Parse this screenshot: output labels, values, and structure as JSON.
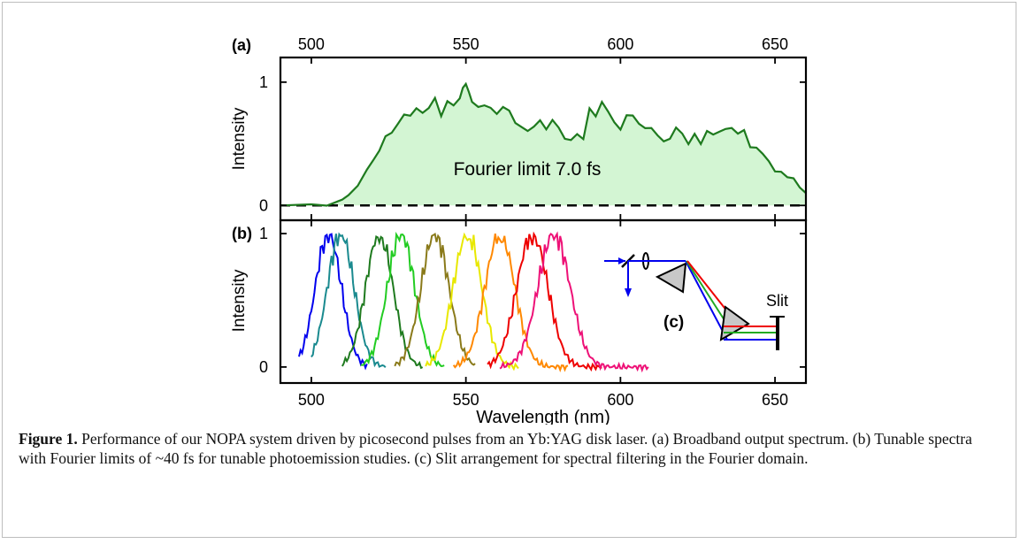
{
  "chart_data": [
    {
      "panel": "(a)",
      "type": "area",
      "xlabel": "",
      "ylabel": "Intensity",
      "xlim": [
        490,
        660
      ],
      "ylim": [
        -0.12,
        1.2
      ],
      "top_ticks": [
        500,
        550,
        600,
        650
      ],
      "y_ticks": [
        0,
        1
      ],
      "annotation": "Fourier limit 7.0 fs",
      "series": [
        {
          "color": "#1e7a1e",
          "fill": "#d3f5d3",
          "x": [
            490,
            500,
            505,
            510,
            512,
            515,
            518,
            520,
            522,
            524,
            526,
            528,
            530,
            532,
            534,
            536,
            538,
            540,
            542,
            544,
            546,
            548,
            549,
            550,
            551,
            552,
            554,
            556,
            558,
            560,
            562,
            564,
            566,
            568,
            570,
            572,
            574,
            576,
            578,
            580,
            582,
            584,
            586,
            588,
            590,
            592,
            594,
            596,
            598,
            600,
            602,
            604,
            606,
            608,
            610,
            612,
            614,
            616,
            618,
            620,
            622,
            624,
            626,
            628,
            630,
            632,
            634,
            636,
            638,
            640,
            642,
            644,
            646,
            648,
            650,
            652,
            654,
            656,
            658,
            660
          ],
          "y": [
            0,
            0,
            0.01,
            0.04,
            0.08,
            0.17,
            0.28,
            0.37,
            0.45,
            0.55,
            0.6,
            0.66,
            0.73,
            0.74,
            0.78,
            0.75,
            0.8,
            0.86,
            0.73,
            0.85,
            0.8,
            0.88,
            0.95,
            0.98,
            0.93,
            0.83,
            0.8,
            0.82,
            0.78,
            0.75,
            0.8,
            0.76,
            0.68,
            0.63,
            0.6,
            0.65,
            0.68,
            0.62,
            0.7,
            0.62,
            0.55,
            0.53,
            0.57,
            0.55,
            0.78,
            0.72,
            0.85,
            0.75,
            0.68,
            0.62,
            0.72,
            0.74,
            0.66,
            0.62,
            0.64,
            0.56,
            0.52,
            0.55,
            0.62,
            0.59,
            0.5,
            0.57,
            0.51,
            0.6,
            0.57,
            0.61,
            0.61,
            0.63,
            0.59,
            0.6,
            0.48,
            0.47,
            0.41,
            0.37,
            0.27,
            0.27,
            0.24,
            0.21,
            0.15,
            0.1
          ]
        }
      ],
      "baseline": 0
    },
    {
      "panel": "(b)",
      "type": "line",
      "xlabel": "Wavelength (nm)",
      "ylabel": "Intensity",
      "xlim": [
        490,
        660
      ],
      "ylim": [
        -0.12,
        1.1
      ],
      "x_ticks": [
        500,
        550,
        600,
        650
      ],
      "y_ticks": [
        0,
        1
      ],
      "series": [
        {
          "color": "#0000ee",
          "center": 505.5,
          "width": 4.2,
          "start": 496,
          "end": 518
        },
        {
          "color": "#1a8a8f",
          "center": 509.5,
          "width": 4.3,
          "start": 500,
          "end": 524
        },
        {
          "color": "#1e7a1e",
          "center": 522,
          "width": 4.4,
          "start": 510,
          "end": 536
        },
        {
          "color": "#22cc22",
          "center": 529,
          "width": 4.4,
          "start": 516,
          "end": 543
        },
        {
          "color": "#8a7a1a",
          "center": 540,
          "width": 4.5,
          "start": 527,
          "end": 553
        },
        {
          "color": "#e8e800",
          "center": 550.5,
          "width": 4.6,
          "start": 537,
          "end": 567
        },
        {
          "color": "#ff8800",
          "center": 561,
          "width": 4.8,
          "start": 546,
          "end": 583
        },
        {
          "color": "#ee0000",
          "center": 571.5,
          "width": 5.0,
          "start": 557,
          "end": 594
        },
        {
          "color": "#ee1177",
          "center": 578.5,
          "width": 5.2,
          "start": 561,
          "end": 609
        }
      ],
      "inset": {
        "label": "(c)",
        "slit_label": "Slit"
      }
    }
  ],
  "panel_a_label": "(a)",
  "panel_b_label": "(b)",
  "caption": {
    "label": "Figure 1.",
    "text": " Performance of our NOPA system driven by picosecond pulses from an Yb:YAG disk laser. (a) Broadband output spectrum. (b) Tunable spectra with Fourier limits of ~40 fs for tunable photoemission studies. (c) Slit arrangement for spectral filtering in the Fourier domain."
  }
}
